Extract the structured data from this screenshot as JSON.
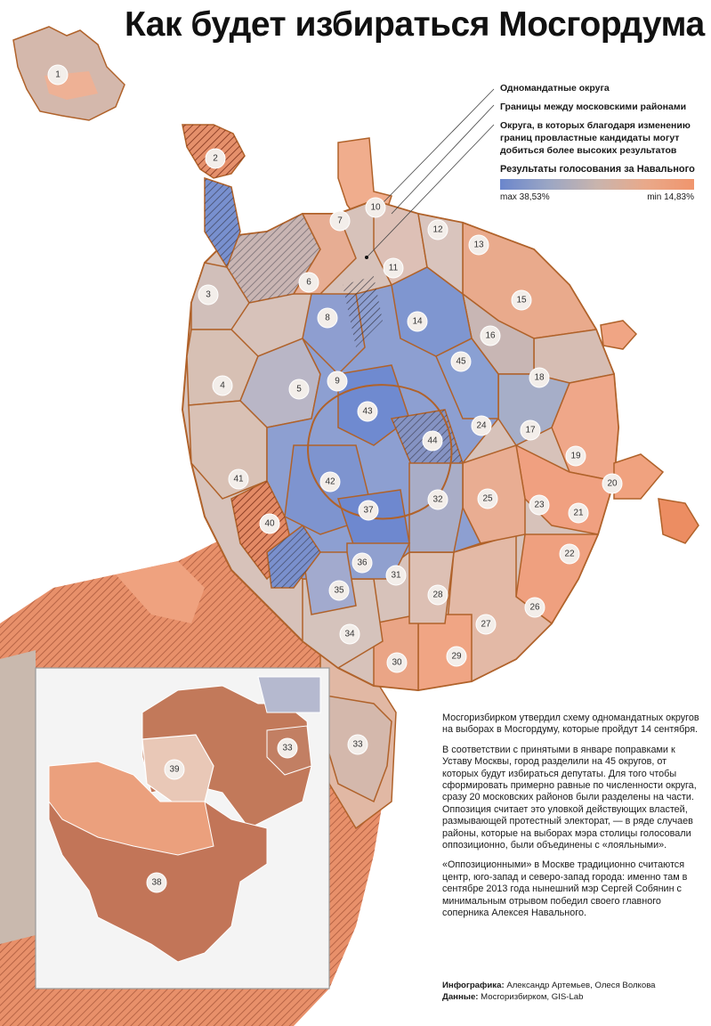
{
  "title": "Как будет избираться Мосгордума",
  "legend": {
    "single_mandate": "Одномандатные округа",
    "borders": "Границы между московскими районами",
    "hatched": "Округа, в которых благодаря изменению границ провластные кандидаты могут добиться более высоких результатов",
    "gradient_title": "Результаты голосования за Навального",
    "max_label": "max 38,53%",
    "min_label": "min 14,83%"
  },
  "colors": {
    "low_vote": "#f0956d",
    "high_vote": "#6b86cc",
    "border": "#b0622a",
    "hatch": "#8a3a1f"
  },
  "map": {
    "district_labels": [
      "1",
      "2",
      "3",
      "4",
      "5",
      "6",
      "7",
      "8",
      "9",
      "10",
      "11",
      "12",
      "13",
      "14",
      "15",
      "16",
      "17",
      "18",
      "19",
      "20",
      "21",
      "22",
      "23",
      "24",
      "25",
      "26",
      "27",
      "28",
      "29",
      "30",
      "31",
      "32",
      "33",
      "34",
      "35",
      "36",
      "37",
      "40",
      "41",
      "42",
      "43",
      "44",
      "45"
    ],
    "inset_labels": [
      "33",
      "38",
      "39"
    ]
  },
  "body": {
    "p1": "Мосгоризбирком утвердил схему одномандатных округов на выборах в Мосгордуму, которые пройдут 14 сентября.",
    "p2": "В соответствии с принятыми в январе поправками к Уставу Москвы, город разделили на 45 округов, от которых будут избираться депутаты. Для того чтобы сформировать примерно равные по численности округа, сразу 20 московских районов были разделены на части. Оппозиция считает это уловкой действующих властей, размывающей протестный электорат, — в ряде случаев районы, которые на выборах мэра столицы голосовали оппозиционно, были объединены с «лояльными».",
    "p3": "«Оппозиционными» в Москве традиционно считаются центр, юго-запад и северо-запад города: именно там в сентябре 2013 года нынешний мэр Сергей Собянин с минимальным отрывом победил своего главного соперника Алексея Навального."
  },
  "credits": {
    "graphics_label": "Инфографика:",
    "graphics_value": "Александр Артемьев, Олеся Волкова",
    "data_label": "Данные:",
    "data_value": "Мосгоризбирком,  GIS-Lab"
  }
}
